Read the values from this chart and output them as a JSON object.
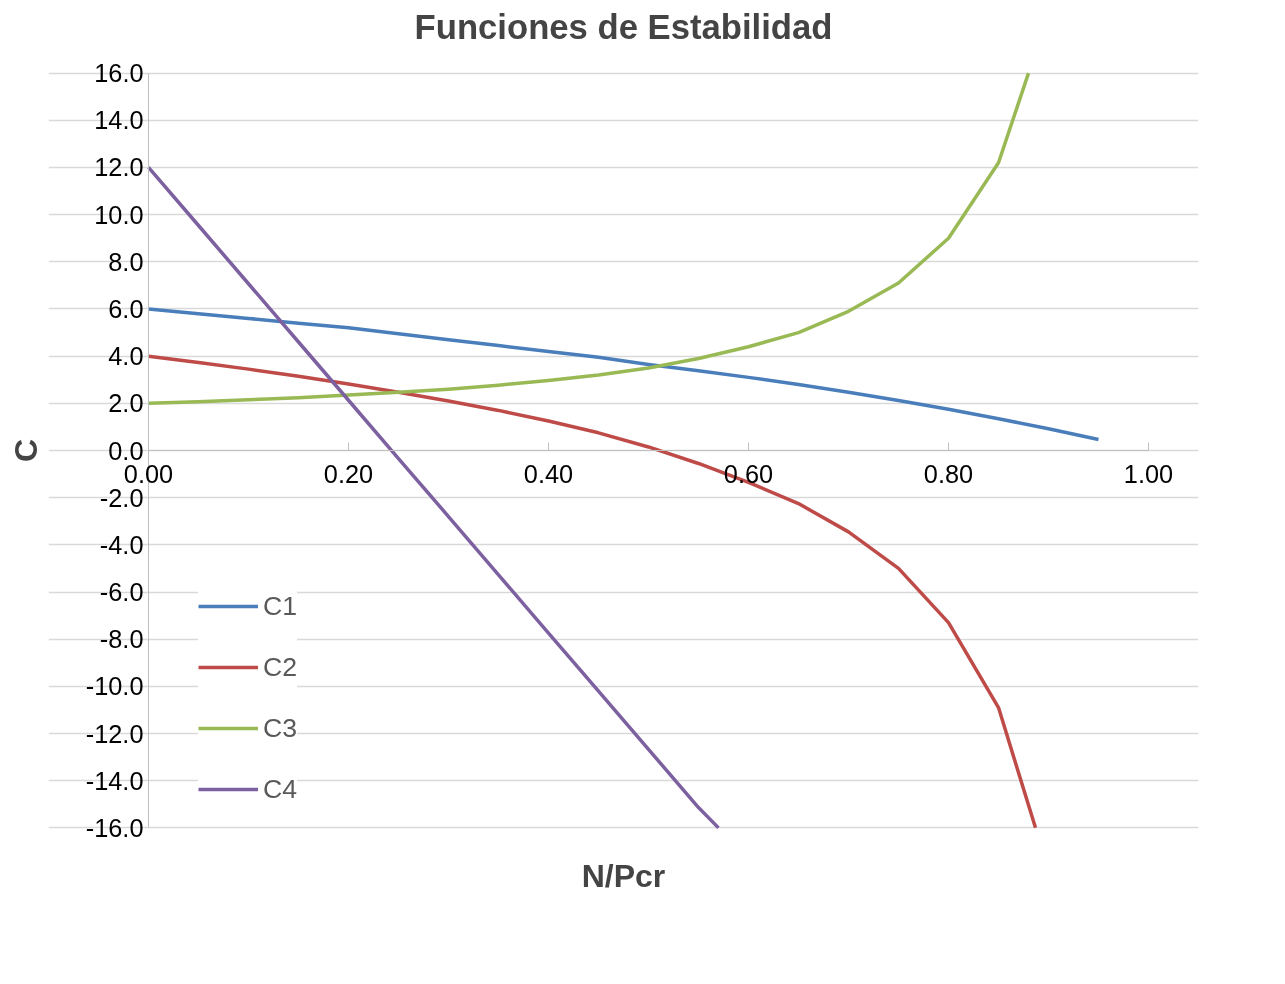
{
  "chart_data": {
    "type": "line",
    "title": "Funciones de Estabilidad",
    "xlabel": "N/Pcr",
    "ylabel": "C",
    "xlim": [
      0,
      1
    ],
    "ylim": [
      -16,
      16
    ],
    "xticks": [
      {
        "value": 0,
        "label": "0.00"
      },
      {
        "value": 0.2,
        "label": "0.20"
      },
      {
        "value": 0.4,
        "label": "0.40"
      },
      {
        "value": 0.6,
        "label": "0.60"
      },
      {
        "value": 0.8,
        "label": "0.80"
      },
      {
        "value": 1,
        "label": "1.00"
      }
    ],
    "yticks": [
      {
        "value": -16,
        "label": "-16.0"
      },
      {
        "value": -14,
        "label": "-14.0"
      },
      {
        "value": -12,
        "label": "-12.0"
      },
      {
        "value": -10,
        "label": "-10.0"
      },
      {
        "value": -8,
        "label": "-8.0"
      },
      {
        "value": -6,
        "label": "-6.0"
      },
      {
        "value": -4,
        "label": "-4.0"
      },
      {
        "value": -2,
        "label": "-2.0"
      },
      {
        "value": 0,
        "label": "0.0"
      },
      {
        "value": 2,
        "label": "2.0"
      },
      {
        "value": 4,
        "label": "4.0"
      },
      {
        "value": 6,
        "label": "6.0"
      },
      {
        "value": 8,
        "label": "8.0"
      },
      {
        "value": 10,
        "label": "10.0"
      },
      {
        "value": 12,
        "label": "12.0"
      },
      {
        "value": 14,
        "label": "14.0"
      },
      {
        "value": 16,
        "label": "16.0"
      }
    ],
    "grid": "y",
    "legend": "bottom left",
    "marker": "none",
    "line_style": "solid",
    "series": [
      {
        "name": "C1",
        "color": "#4a7ebb",
        "x": [
          0,
          0.05,
          0.1,
          0.15,
          0.2,
          0.25,
          0.3,
          0.35,
          0.4,
          0.45,
          0.5,
          0.55,
          0.6,
          0.65,
          0.7,
          0.75,
          0.8,
          0.85,
          0.9,
          0.95
        ],
        "values": [
          6.0,
          5.8,
          5.6,
          5.4,
          5.2,
          4.95,
          4.7,
          4.45,
          4.2,
          3.95,
          3.65,
          3.38,
          3.1,
          2.8,
          2.47,
          2.12,
          1.75,
          1.35,
          0.92,
          0.47
        ]
      },
      {
        "name": "C2",
        "color": "#be4b48",
        "x": [
          0,
          0.05,
          0.1,
          0.15,
          0.2,
          0.25,
          0.3,
          0.35,
          0.4,
          0.45,
          0.5,
          0.55,
          0.6,
          0.65,
          0.7,
          0.75,
          0.8,
          0.85,
          0.887
        ],
        "values": [
          4.0,
          3.73,
          3.45,
          3.15,
          2.82,
          2.47,
          2.1,
          1.7,
          1.25,
          0.75,
          0.15,
          -0.55,
          -1.35,
          -2.25,
          -3.45,
          -5.0,
          -7.3,
          -10.9,
          -16.0
        ]
      },
      {
        "name": "C3",
        "color": "#98b954",
        "x": [
          0,
          0.05,
          0.1,
          0.15,
          0.2,
          0.25,
          0.3,
          0.35,
          0.4,
          0.45,
          0.5,
          0.55,
          0.6,
          0.65,
          0.7,
          0.75,
          0.8,
          0.85,
          0.88
        ],
        "values": [
          2.0,
          2.07,
          2.15,
          2.24,
          2.35,
          2.47,
          2.6,
          2.77,
          2.97,
          3.2,
          3.5,
          3.9,
          4.4,
          5.0,
          5.9,
          7.1,
          9.0,
          12.2,
          16.0
        ]
      },
      {
        "name": "C4",
        "color": "#7d60a0",
        "x": [
          0,
          0.05,
          0.1,
          0.15,
          0.2,
          0.25,
          0.3,
          0.35,
          0.4,
          0.45,
          0.5,
          0.55,
          0.57
        ],
        "values": [
          12.0,
          9.54,
          7.07,
          4.6,
          2.13,
          -0.34,
          -2.8,
          -5.27,
          -7.74,
          -10.2,
          -12.67,
          -15.14,
          -16.0
        ]
      }
    ]
  }
}
